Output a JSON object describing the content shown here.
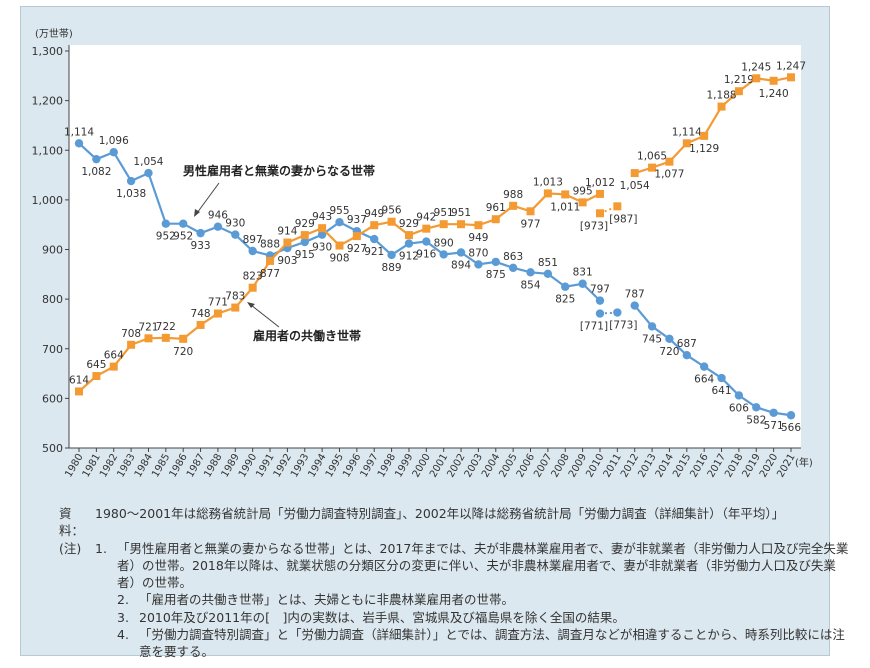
{
  "chart_data": {
    "type": "line",
    "ylabel": "(万世帯)",
    "xlabel": "(年)",
    "ylim": [
      500,
      1300
    ],
    "yticks": [
      500,
      600,
      700,
      800,
      900,
      1000,
      1100,
      1200,
      1300
    ],
    "ytick_labels": [
      "500",
      "600",
      "700",
      "800",
      "900",
      "1,000",
      "1,100",
      "1,200",
      "1,300"
    ],
    "x": [
      1980,
      1981,
      1982,
      1983,
      1984,
      1985,
      1986,
      1987,
      1988,
      1989,
      1990,
      1991,
      1992,
      1993,
      1994,
      1995,
      1996,
      1997,
      1998,
      1999,
      2000,
      2001,
      2002,
      2003,
      2004,
      2005,
      2006,
      2007,
      2008,
      2009,
      2010,
      2011,
      2012,
      2013,
      2014,
      2015,
      2016,
      2017,
      2018,
      2019,
      2020,
      2021
    ],
    "grid": false,
    "series": [
      {
        "name": "男性雇用者と無業の妻からなる世帯",
        "color": "#5b9bd5",
        "marker": "circle",
        "values": [
          1114,
          1082,
          1096,
          1038,
          1054,
          952,
          952,
          933,
          946,
          930,
          897,
          888,
          903,
          915,
          930,
          955,
          937,
          921,
          889,
          912,
          916,
          890,
          894,
          870,
          875,
          863,
          854,
          851,
          825,
          831,
          797,
          null,
          787,
          745,
          720,
          687,
          664,
          641,
          606,
          582,
          571,
          566
        ],
        "bracketed": [
          {
            "x": 2010,
            "value": 771,
            "label": "[771]"
          },
          {
            "x": 2011,
            "value": 773,
            "label": "[773]"
          }
        ]
      },
      {
        "name": "雇用者の共働き世帯",
        "color": "#f39a32",
        "marker": "square",
        "values": [
          614,
          645,
          664,
          708,
          721,
          722,
          720,
          748,
          771,
          783,
          823,
          877,
          914,
          929,
          943,
          908,
          927,
          949,
          956,
          929,
          942,
          951,
          951,
          949,
          961,
          988,
          977,
          1013,
          1011,
          995,
          1012,
          null,
          1054,
          1065,
          1077,
          1114,
          1129,
          1188,
          1219,
          1245,
          1240,
          1247
        ],
        "bracketed": [
          {
            "x": 2010,
            "value": 973,
            "label": "[973]"
          },
          {
            "x": 2011,
            "value": 987,
            "label": "[987]"
          }
        ]
      }
    ]
  },
  "notes": {
    "source_label": "資料：",
    "source": "1980～2001年は総務省統計局「労働力調査特別調査」、2002年以降は総務省統計局「労働力調査（詳細集計）（年平均）」",
    "note_label": "(注)",
    "items": [
      {
        "num": "1.",
        "text": "「男性雇用者と無業の妻からなる世帯」とは、2017年までは、夫が非農林業雇用者で、妻が非就業者（非労働力人口及び完全失業者）の世帯。2018年以降は、就業状態の分類区分の変更に伴い、夫が非農林業雇用者で、妻が非就業者（非労働力人口及び失業者）の世帯。"
      },
      {
        "num": "2.",
        "text": "「雇用者の共働き世帯」とは、夫婦ともに非農林業雇用者の世帯。"
      },
      {
        "num": "3.",
        "text": "2010年及び2011年の[　]内の実数は、岩手県、宮城県及び福島県を除く全国の結果。"
      },
      {
        "num": "4.",
        "text": "「労働力調査特別調査」と「労働力調査（詳細集計）」とでは、調査方法、調査月などが相違することから、時系列比較には注意を要する。"
      }
    ]
  }
}
